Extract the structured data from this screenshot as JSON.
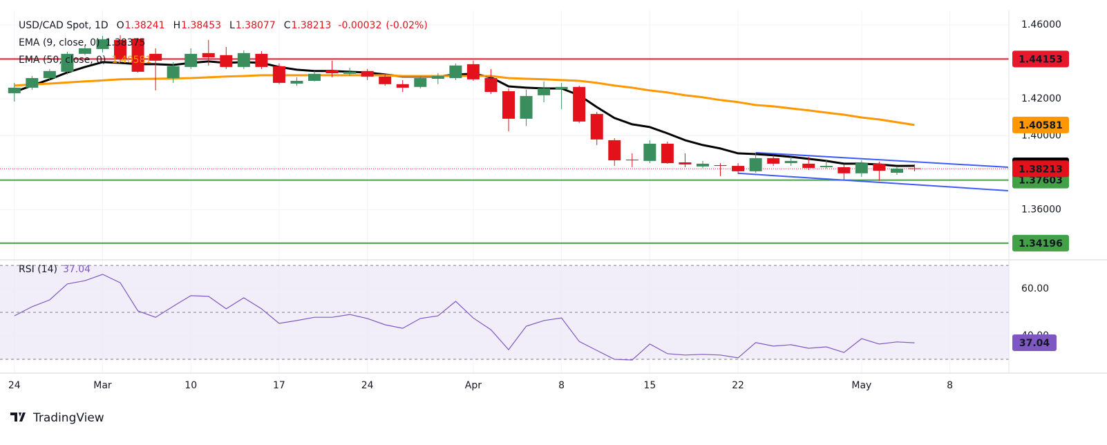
{
  "chart_data": [
    {
      "type": "candlestick",
      "title": "USD/CAD Spot, 1D",
      "ohlc_labels": [
        "O",
        "H",
        "L",
        "C"
      ],
      "change": -0.00032,
      "change_pct": {
        "value": -0.02,
        "label": "(-0.02%)"
      },
      "categories": [
        "24",
        null,
        null,
        null,
        null,
        "Mar",
        null,
        null,
        null,
        null,
        "10",
        null,
        null,
        null,
        null,
        "17",
        null,
        null,
        null,
        null,
        "24",
        null,
        null,
        null,
        null,
        null,
        "Apr",
        null,
        null,
        null,
        null,
        "8",
        null,
        null,
        null,
        null,
        "15",
        null,
        null,
        null,
        null,
        "22",
        null,
        null,
        null,
        null,
        null,
        null,
        "May",
        null,
        null,
        null,
        null,
        "8",
        null,
        null,
        null
      ],
      "open": [
        1.423,
        1.426,
        1.4312,
        1.4346,
        1.4443,
        1.4469,
        1.4518,
        1.4525,
        1.4443,
        1.4312,
        1.4372,
        1.4447,
        1.4436,
        1.4372,
        1.4443,
        1.4376,
        1.4282,
        1.4297,
        1.4353,
        1.4335,
        1.435,
        1.432,
        1.4279,
        1.4264,
        1.4308,
        1.4312,
        1.4387,
        1.4312,
        1.4241,
        1.4092,
        1.4219,
        1.4252,
        1.4264,
        1.4118,
        1.3976,
        1.3871,
        1.3864,
        1.3957,
        1.3856,
        1.3834,
        1.3841,
        1.3837,
        1.3808,
        1.3879,
        1.3852,
        1.3849,
        1.383,
        1.383,
        1.3797,
        1.3849,
        1.38,
        1.38241,
        null,
        null,
        null,
        null,
        null
      ],
      "high": [
        1.4286,
        1.4323,
        1.4361,
        1.4454,
        1.4488,
        1.454,
        1.4544,
        1.4529,
        1.4473,
        1.4398,
        1.4473,
        1.4518,
        1.448,
        1.4462,
        1.4458,
        1.4391,
        1.4316,
        1.435,
        1.4406,
        1.4368,
        1.4361,
        1.4338,
        1.4301,
        1.4323,
        1.4338,
        1.4391,
        1.4406,
        1.4361,
        1.4256,
        1.4249,
        1.4294,
        1.4286,
        1.4271,
        1.4129,
        1.3987,
        1.3905,
        1.3976,
        1.3968,
        1.3905,
        1.3864,
        1.3852,
        1.3852,
        1.3905,
        1.3894,
        1.3886,
        1.3886,
        1.3867,
        1.3845,
        1.3867,
        1.386,
        1.3834,
        1.38453,
        null,
        null,
        null,
        null,
        null
      ],
      "low": [
        1.4185,
        1.4249,
        1.4301,
        1.4331,
        1.4436,
        1.4451,
        1.4398,
        1.4342,
        1.4245,
        1.4286,
        1.4361,
        1.438,
        1.4361,
        1.4361,
        1.4361,
        1.4279,
        1.4271,
        1.4294,
        1.4316,
        1.4323,
        1.4301,
        1.4271,
        1.4237,
        1.4256,
        1.4279,
        1.4301,
        1.4297,
        1.4226,
        1.4024,
        1.4054,
        1.4181,
        1.4144,
        1.4069,
        1.395,
        1.3837,
        1.383,
        1.3852,
        1.3849,
        1.383,
        1.3826,
        1.3782,
        1.3793,
        1.38,
        1.3837,
        1.3837,
        1.3815,
        1.3822,
        1.3763,
        1.3778,
        1.3756,
        1.3789,
        1.38077,
        null,
        null,
        null,
        null,
        null
      ],
      "close": [
        1.426,
        1.4312,
        1.435,
        1.4443,
        1.4473,
        1.4522,
        1.4417,
        1.4346,
        1.4406,
        1.4376,
        1.4443,
        1.4424,
        1.4372,
        1.4447,
        1.4372,
        1.4286,
        1.4297,
        1.4335,
        1.4338,
        1.4346,
        1.432,
        1.4279,
        1.426,
        1.4312,
        1.4323,
        1.438,
        1.4305,
        1.4237,
        1.4092,
        1.4215,
        1.4256,
        1.4264,
        1.4077,
        1.398,
        1.3867,
        1.3867,
        1.3957,
        1.3852,
        1.3845,
        1.3849,
        1.3837,
        1.3808,
        1.3879,
        1.3849,
        1.3864,
        1.3826,
        1.3837,
        1.3797,
        1.3852,
        1.3811,
        1.3822,
        1.38213,
        null,
        null,
        null,
        null,
        null
      ],
      "up_color": "#3a8d5d",
      "down_color": "#e2111b",
      "series": [
        {
          "name": "EMA (9, close, 0)",
          "color": "#000000",
          "values": [
            1.4237,
            1.4271,
            1.4305,
            1.4342,
            1.4372,
            1.4398,
            1.4394,
            1.4387,
            1.4387,
            1.4383,
            1.4394,
            1.4402,
            1.4394,
            1.4398,
            1.4394,
            1.4372,
            1.4357,
            1.435,
            1.435,
            1.4346,
            1.4342,
            1.4331,
            1.432,
            1.432,
            1.432,
            1.4331,
            1.4335,
            1.4316,
            1.4267,
            1.426,
            1.4256,
            1.4256,
            1.4219,
            1.4155,
            1.4096,
            1.4062,
            1.4047,
            1.4013,
            1.3976,
            1.395,
            1.3931,
            1.3905,
            1.3901,
            1.3894,
            1.3886,
            1.3875,
            1.3864,
            1.3849,
            1.3849,
            1.3845,
            1.3837,
            1.38375,
            null,
            null,
            null,
            null,
            null
          ]
        },
        {
          "name": "EMA (50, close, 0)",
          "color": "#ff9800",
          "values": [
            1.4271,
            1.4277,
            1.4282,
            1.4288,
            1.4294,
            1.4299,
            1.4305,
            1.4307,
            1.4308,
            1.431,
            1.4312,
            1.4316,
            1.432,
            1.4323,
            1.4327,
            1.4327,
            1.4327,
            1.4327,
            1.4327,
            1.4327,
            1.4327,
            1.4327,
            1.4323,
            1.4323,
            1.4323,
            1.4323,
            1.4323,
            1.4323,
            1.4312,
            1.4308,
            1.4305,
            1.4301,
            1.4297,
            1.4286,
            1.4271,
            1.426,
            1.4245,
            1.4234,
            1.4219,
            1.4208,
            1.4193,
            1.4182,
            1.4166,
            1.4159,
            1.4148,
            1.4137,
            1.4125,
            1.4114,
            1.4099,
            1.4088,
            1.4073,
            1.40581,
            null,
            null,
            null,
            null,
            null
          ]
        }
      ],
      "levels": [
        {
          "value": 1.44153,
          "color": "#e8182c"
        },
        {
          "value": 1.37603,
          "color": "#43a047"
        },
        {
          "value": 1.34196,
          "color": "#43a047"
        }
      ],
      "trendlines": [
        {
          "color": "#3d5afe",
          "start": [
            42,
            1.3909
          ],
          "end": [
            56.3,
            1.383
          ]
        },
        {
          "color": "#3d5afe",
          "start": [
            41,
            1.3797
          ],
          "end": [
            56.3,
            1.3703
          ]
        }
      ],
      "ylim": [
        1.3333,
        1.4678
      ],
      "yticks": [
        {
          "value": 1.46,
          "label": "1.46000"
        },
        {
          "value": 1.42,
          "label": "1.42000"
        },
        {
          "value": 1.4,
          "label": "1.40000"
        },
        {
          "value": 1.36,
          "label": "1.36000"
        }
      ],
      "grid": true
    },
    {
      "type": "line",
      "series": [
        {
          "name": "RSI (14)",
          "color": "#7e57c2",
          "values": [
            48.5,
            52.4,
            55.3,
            62.1,
            63.5,
            66.2,
            62.6,
            50.6,
            47.9,
            52.6,
            57.1,
            56.8,
            51.5,
            56.2,
            51.5,
            45.3,
            46.5,
            47.9,
            47.9,
            49.1,
            47.4,
            44.7,
            43.2,
            47.4,
            48.5,
            54.7,
            47.6,
            42.6,
            34.1,
            44.1,
            46.5,
            47.6,
            37.6,
            33.8,
            30.0,
            29.7,
            36.5,
            32.4,
            31.8,
            32.1,
            31.8,
            30.6,
            37.1,
            35.6,
            36.2,
            34.7,
            35.3,
            32.9,
            38.8,
            36.5,
            37.4,
            37.04,
            null,
            null,
            null,
            null,
            null
          ]
        }
      ],
      "bands": [
        70,
        50,
        30
      ],
      "band_color": "#ede7f6",
      "ylim": [
        24.1,
        71.8
      ],
      "yticks": [
        {
          "value": 60,
          "label": "60.00"
        },
        {
          "value": 40,
          "label": "40.00"
        }
      ],
      "grid": true
    }
  ],
  "branding": "TradingView"
}
